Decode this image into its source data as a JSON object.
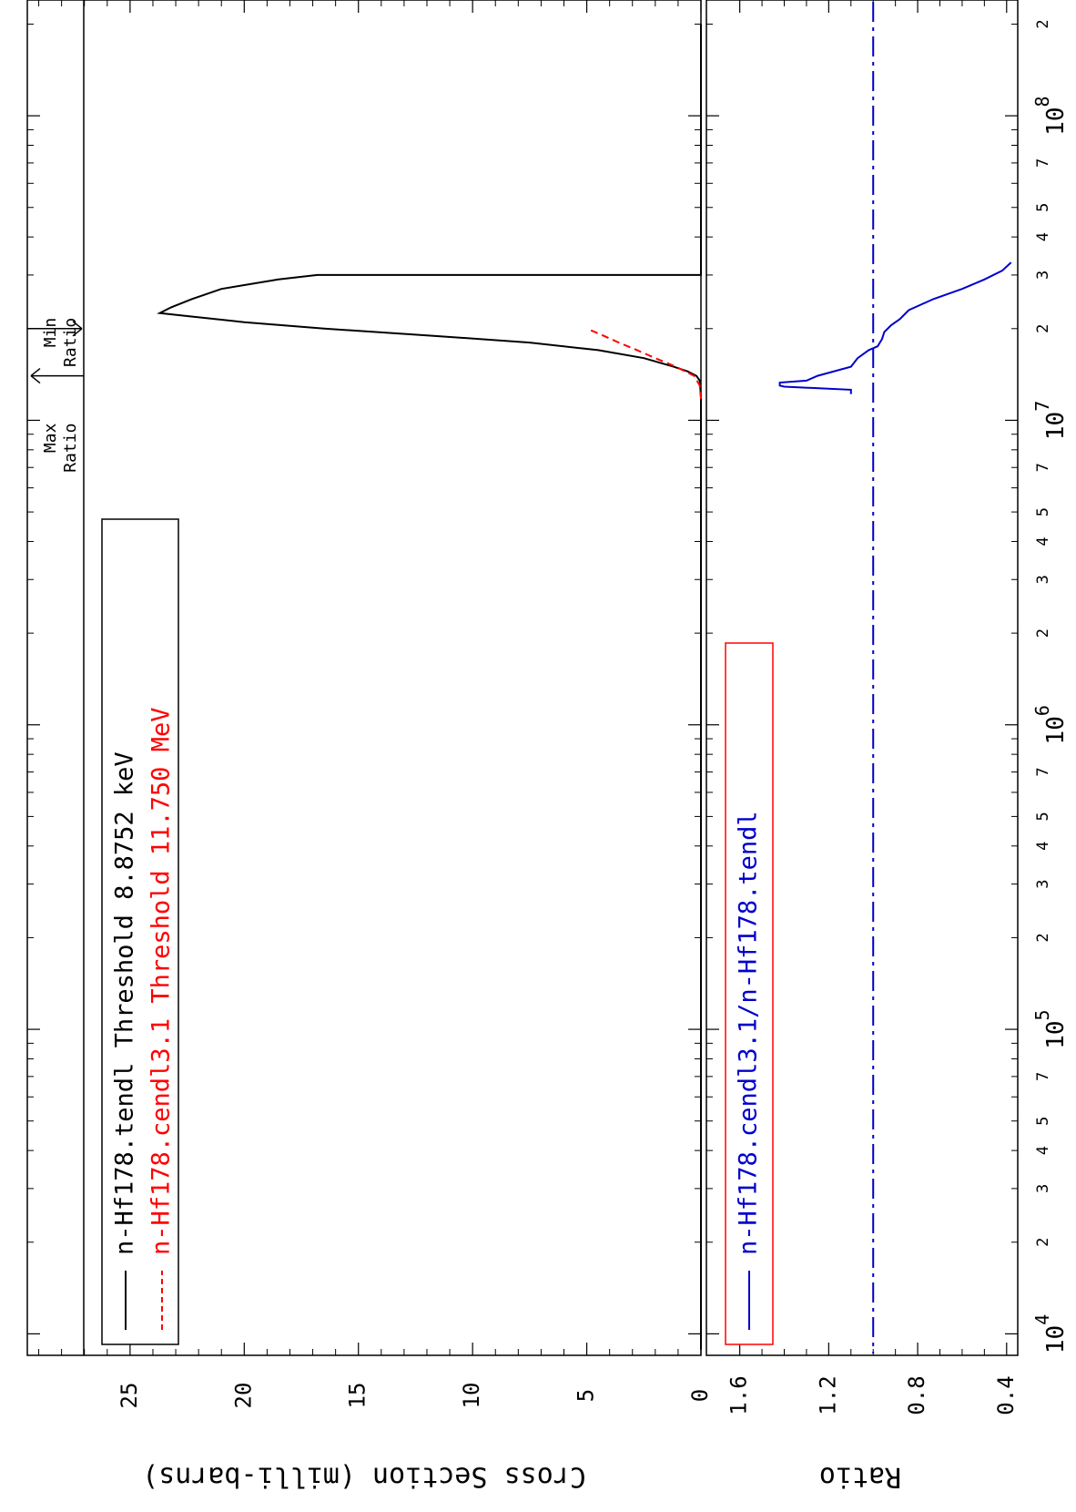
{
  "chart_data": [
    {
      "type": "line",
      "panel": "cross-section",
      "xscale": "log",
      "xlim": [
        8500,
        240000000
      ],
      "ylabel": "Cross Section (milli-barns)",
      "ylim": [
        0,
        29.5
      ],
      "yticks": [
        "0",
        "5",
        "10",
        "15",
        "20",
        "25"
      ],
      "xticks_major": [
        {
          "base": "10",
          "exp": "4",
          "value": 10000
        },
        {
          "base": "10",
          "exp": "5",
          "value": 100000
        },
        {
          "base": "10",
          "exp": "6",
          "value": 1000000
        },
        {
          "base": "10",
          "exp": "7",
          "value": 10000000
        },
        {
          "base": "10",
          "exp": "8",
          "value": 100000000
        }
      ],
      "xticks_minor_labels": [
        "2",
        "3",
        "4",
        "5",
        "7"
      ],
      "markers": [
        {
          "label": "Max\nRatio",
          "x": 14000000
        },
        {
          "label": "Min\nRatio",
          "x": 20000000
        }
      ],
      "legend_placement": "top-left",
      "series": [
        {
          "name": "n-Hf178.tendl Threshold 8.8752 keV",
          "color": "#000000",
          "style": "solid",
          "points": [
            [
              8875.2,
              0
            ],
            [
              12000000,
              0
            ],
            [
              13500000,
              0.05
            ],
            [
              14000000,
              0.2
            ],
            [
              14500000,
              0.6
            ],
            [
              15000000,
              1.2
            ],
            [
              16000000,
              2.5
            ],
            [
              17000000,
              4.5
            ],
            [
              18000000,
              7.5
            ],
            [
              19000000,
              12
            ],
            [
              20000000,
              16.5
            ],
            [
              21000000,
              20
            ],
            [
              22000000,
              22.5
            ],
            [
              22500000,
              23.7
            ],
            [
              23500000,
              23.2
            ],
            [
              25000000,
              22.3
            ],
            [
              27000000,
              21
            ],
            [
              29000000,
              18.5
            ],
            [
              30000000,
              16.8
            ],
            [
              30000000,
              0
            ],
            [
              200000000,
              0
            ]
          ]
        },
        {
          "name": "n-Hf178.cendl3.1 Threshold 11.750 MeV",
          "color": "#ff0000",
          "style": "dashed",
          "points": [
            [
              11750000,
              0
            ],
            [
              13000000,
              0.05
            ],
            [
              14000000,
              0.3
            ],
            [
              15000000,
              1.1
            ],
            [
              16000000,
              2.0
            ],
            [
              17000000,
              2.8
            ],
            [
              18000000,
              3.6
            ],
            [
              19000000,
              4.3
            ],
            [
              20000000,
              5.0
            ]
          ]
        }
      ]
    },
    {
      "type": "line",
      "panel": "ratio",
      "xscale": "log",
      "xlim": [
        8500,
        240000000
      ],
      "ylabel": "Ratio",
      "ylim": [
        0.35,
        1.75
      ],
      "yticks": [
        "0.4",
        "0.8",
        "1.2",
        "1.6"
      ],
      "reference_line": 1.0,
      "legend_placement": "top-left",
      "series": [
        {
          "name": "n-Hf178.cendl3.1/n-Hf178.tendl",
          "color": "#0000cc",
          "style": "solid",
          "points": [
            [
              12200000,
              1.1
            ],
            [
              12600000,
              1.1
            ],
            [
              12900000,
              1.4
            ],
            [
              13000000,
              1.42
            ],
            [
              13300000,
              1.42
            ],
            [
              13500000,
              1.3
            ],
            [
              14000000,
              1.25
            ],
            [
              15000000,
              1.1
            ],
            [
              16000000,
              1.07
            ],
            [
              17000000,
              1.02
            ],
            [
              17500000,
              0.98
            ],
            [
              18500000,
              0.96
            ],
            [
              19500000,
              0.95
            ],
            [
              20500000,
              0.92
            ],
            [
              21500000,
              0.88
            ],
            [
              23000000,
              0.84
            ],
            [
              25000000,
              0.73
            ],
            [
              27000000,
              0.6
            ],
            [
              29000000,
              0.5
            ],
            [
              31000000,
              0.42
            ],
            [
              33000000,
              0.38
            ]
          ]
        }
      ]
    }
  ]
}
